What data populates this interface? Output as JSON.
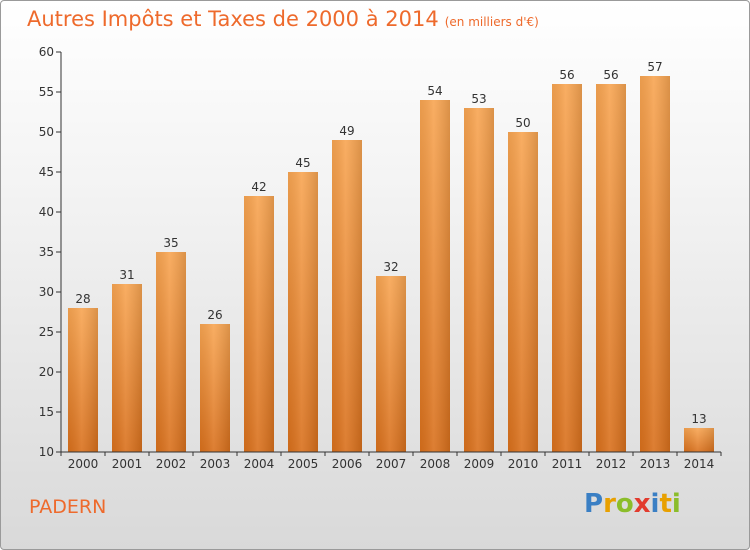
{
  "chart_data": {
    "type": "bar",
    "title": "Autres Impôts et Taxes de 2000 à 2014",
    "subtitle": "(en milliers d'€)",
    "categories": [
      "2000",
      "2001",
      "2002",
      "2003",
      "2004",
      "2005",
      "2006",
      "2007",
      "2008",
      "2009",
      "2010",
      "2011",
      "2012",
      "2013",
      "2014"
    ],
    "values": [
      28,
      31,
      35,
      26,
      42,
      45,
      49,
      32,
      54,
      53,
      50,
      56,
      56,
      57,
      13
    ],
    "ylim": [
      10,
      60
    ],
    "yticks": [
      10,
      15,
      20,
      25,
      30,
      35,
      40,
      45,
      50,
      55,
      60
    ],
    "xlabel": "",
    "ylabel": "",
    "grid": false,
    "bar_color": "#f0882e"
  },
  "footer": {
    "place": "PADERN",
    "logo_letters": [
      {
        "ch": "P",
        "color": "#3a7fc4"
      },
      {
        "ch": "r",
        "color": "#e8a000"
      },
      {
        "ch": "o",
        "color": "#8bbd2a"
      },
      {
        "ch": "x",
        "color": "#e23b2e"
      },
      {
        "ch": "i",
        "color": "#3a7fc4"
      },
      {
        "ch": "t",
        "color": "#e8a000"
      },
      {
        "ch": "i",
        "color": "#8bbd2a"
      }
    ]
  },
  "colors": {
    "title": "#ee6a2c",
    "axis": "#333333"
  }
}
